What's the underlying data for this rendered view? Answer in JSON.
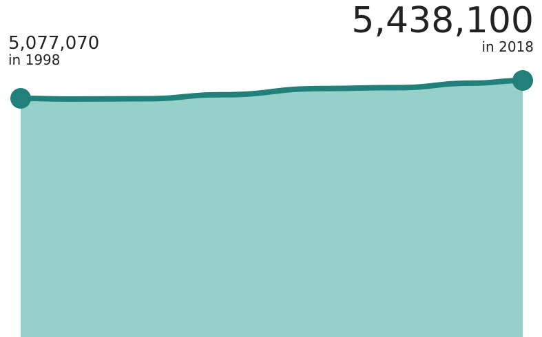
{
  "chart_data": {
    "type": "area",
    "x": [
      1998,
      2018
    ],
    "series": [
      {
        "values": [
          5077070,
          5438100
        ]
      }
    ],
    "annotations": {
      "start_value": "5,077,070",
      "start_label": "in 1998",
      "end_value": "5,438,100",
      "end_label": "in 2018"
    },
    "grid": false,
    "legend": "none"
  },
  "colors": {
    "fill": "#95d0c9",
    "line": "#21807a",
    "text": "#222222"
  }
}
